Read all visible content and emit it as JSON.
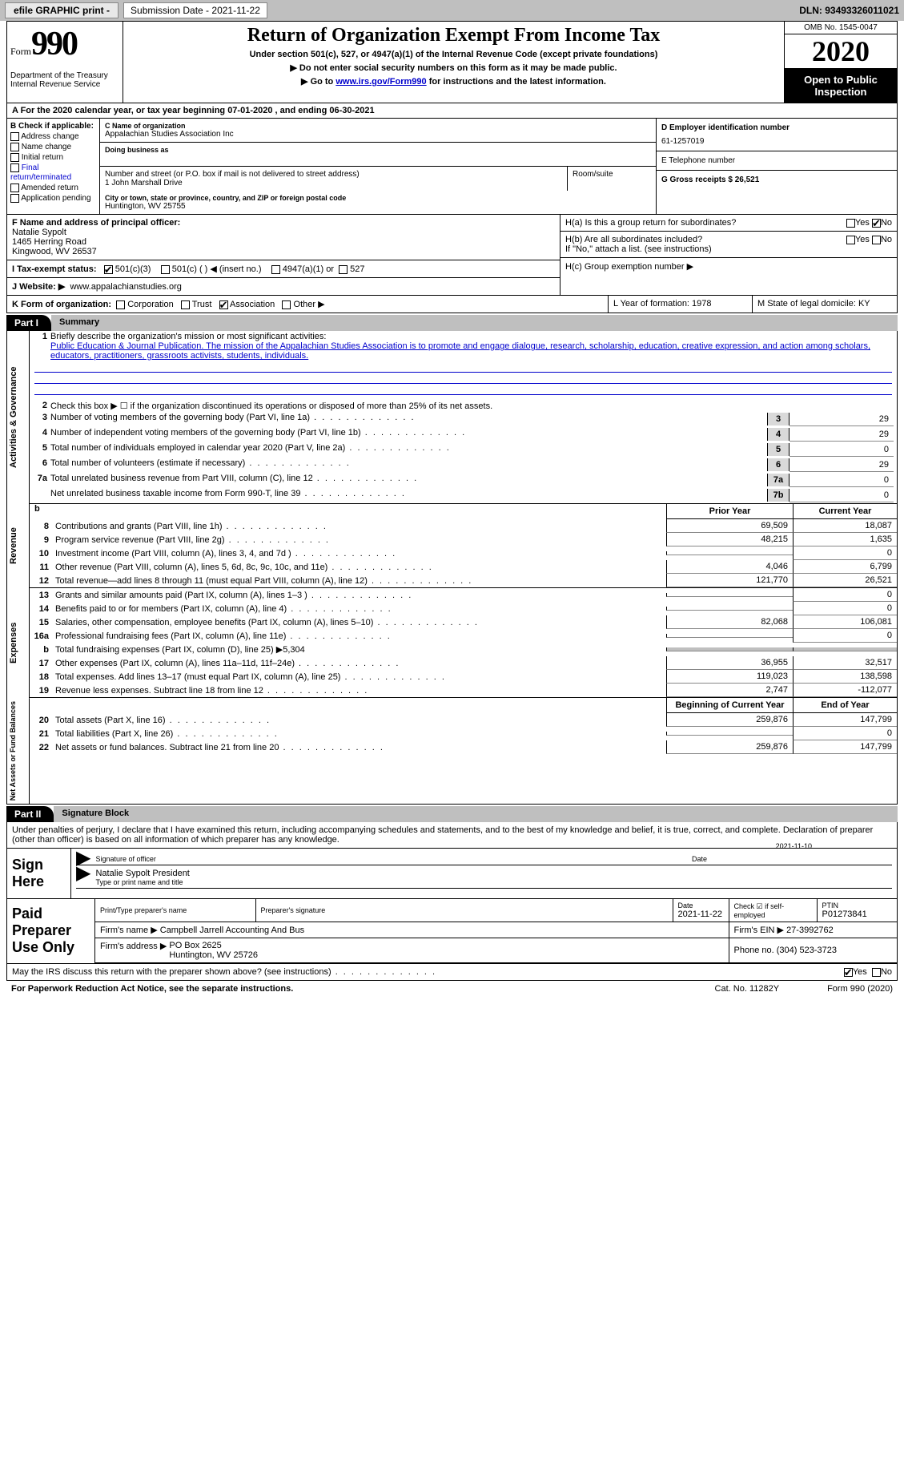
{
  "toolbar": {
    "efile": "efile GRAPHIC print -",
    "submission_label": "Submission Date - 2021-11-22",
    "dln_label": "DLN: 93493326011021"
  },
  "header": {
    "form_word": "Form",
    "form_num": "990",
    "dept": "Department of the Treasury\nInternal Revenue Service",
    "title": "Return of Organization Exempt From Income Tax",
    "sub1": "Under section 501(c), 527, or 4947(a)(1) of the Internal Revenue Code (except private foundations)",
    "sub2a": "▶ Do not enter social security numbers on this form as it may be made public.",
    "sub2b_pre": "▶ Go to ",
    "sub2b_link": "www.irs.gov/Form990",
    "sub2b_post": " for instructions and the latest information.",
    "omb": "OMB No. 1545-0047",
    "year": "2020",
    "open": "Open to Public Inspection"
  },
  "row_a": "A For the 2020 calendar year, or tax year beginning 07-01-2020    , and ending 06-30-2021",
  "col_b": {
    "title": "B Check if applicable:",
    "items": [
      "Address change",
      "Name change",
      "Initial return",
      "Final return/terminated",
      "Amended return",
      "Application pending"
    ]
  },
  "box_c": {
    "lbl": "C Name of organization",
    "val": "Appalachian Studies Association Inc",
    "dba_lbl": "Doing business as",
    "addr_lbl": "Number and street (or P.O. box if mail is not delivered to street address)",
    "addr": "1 John Marshall Drive",
    "room_lbl": "Room/suite",
    "city_lbl": "City or town, state or province, country, and ZIP or foreign postal code",
    "city": "Huntington, WV  25755"
  },
  "col_e": {
    "d_lbl": "D Employer identification number",
    "d_val": "61-1257019",
    "e_lbl": "E Telephone number",
    "g_lbl": "G Gross receipts $ 26,521"
  },
  "box_f": {
    "lbl": "F  Name and address of principal officer:",
    "name": "Natalie Sypolt",
    "addr1": "1465 Herring Road",
    "addr2": "Kingwood, WV  26537"
  },
  "row_i": {
    "lbl": "I   Tax-exempt status:",
    "o1": "501(c)(3)",
    "o2": "501(c) (   ) ◀ (insert no.)",
    "o3": "4947(a)(1) or",
    "o4": "527"
  },
  "row_j": {
    "lbl": "J   Website: ▶",
    "val": "www.appalachianstudies.org"
  },
  "box_h": {
    "a": "H(a)  Is this a group return for subordinates?",
    "b": "H(b)  Are all subordinates included?",
    "b2": "If \"No,\" attach a list. (see instructions)",
    "c": "H(c)  Group exemption number ▶",
    "yes": "Yes",
    "no": "No"
  },
  "row_k": {
    "lbl": "K Form of organization:",
    "o1": "Corporation",
    "o2": "Trust",
    "o3": "Association",
    "o4": "Other ▶"
  },
  "row_l": {
    "lbl": "L Year of formation: 1978"
  },
  "row_m": {
    "lbl": "M State of legal domicile: KY"
  },
  "part1": {
    "hdr": "Part I",
    "title": "Summary"
  },
  "gov": {
    "vlabel": "Activities & Governance",
    "l1_lbl": "Briefly describe the organization's mission or most significant activities:",
    "l1_txt": "Public Education & Journal Publication. The mission of the Appalachian Studies Association is to promote and engage dialogue, research, scholarship, education, creative expression, and action among scholars, educators, practitioners, grassroots activists, students, individuals.",
    "l2": "Check this box ▶ ☐  if the organization discontinued its operations or disposed of more than 25% of its net assets.",
    "rows": [
      {
        "n": "3",
        "desc": "Number of voting members of the governing body (Part VI, line 1a)",
        "cell": "3",
        "val": "29"
      },
      {
        "n": "4",
        "desc": "Number of independent voting members of the governing body (Part VI, line 1b)",
        "cell": "4",
        "val": "29"
      },
      {
        "n": "5",
        "desc": "Total number of individuals employed in calendar year 2020 (Part V, line 2a)",
        "cell": "5",
        "val": "0"
      },
      {
        "n": "6",
        "desc": "Total number of volunteers (estimate if necessary)",
        "cell": "6",
        "val": "29"
      },
      {
        "n": "7a",
        "desc": "Total unrelated business revenue from Part VIII, column (C), line 12",
        "cell": "7a",
        "val": "0"
      },
      {
        "n": "",
        "desc": "Net unrelated business taxable income from Form 990-T, line 39",
        "cell": "7b",
        "val": "0"
      }
    ]
  },
  "two_hdr": {
    "prior": "Prior Year",
    "current": "Current Year",
    "boy": "Beginning of Current Year",
    "eoy": "End of Year"
  },
  "rev": {
    "vlabel": "Revenue",
    "rows": [
      {
        "n": "8",
        "desc": "Contributions and grants (Part VIII, line 1h)",
        "c1": "69,509",
        "c2": "18,087"
      },
      {
        "n": "9",
        "desc": "Program service revenue (Part VIII, line 2g)",
        "c1": "48,215",
        "c2": "1,635"
      },
      {
        "n": "10",
        "desc": "Investment income (Part VIII, column (A), lines 3, 4, and 7d )",
        "c1": "",
        "c2": "0"
      },
      {
        "n": "11",
        "desc": "Other revenue (Part VIII, column (A), lines 5, 6d, 8c, 9c, 10c, and 11e)",
        "c1": "4,046",
        "c2": "6,799"
      },
      {
        "n": "12",
        "desc": "Total revenue—add lines 8 through 11 (must equal Part VIII, column (A), line 12)",
        "c1": "121,770",
        "c2": "26,521"
      }
    ]
  },
  "exp": {
    "vlabel": "Expenses",
    "rows": [
      {
        "n": "13",
        "desc": "Grants and similar amounts paid (Part IX, column (A), lines 1–3 )",
        "c1": "",
        "c2": "0"
      },
      {
        "n": "14",
        "desc": "Benefits paid to or for members (Part IX, column (A), line 4)",
        "c1": "",
        "c2": "0"
      },
      {
        "n": "15",
        "desc": "Salaries, other compensation, employee benefits (Part IX, column (A), lines 5–10)",
        "c1": "82,068",
        "c2": "106,081"
      },
      {
        "n": "16a",
        "desc": "Professional fundraising fees (Part IX, column (A), line 11e)",
        "c1": "",
        "c2": "0"
      },
      {
        "n": "b",
        "desc": "Total fundraising expenses (Part IX, column (D), line 25) ▶5,304",
        "shade": true
      },
      {
        "n": "17",
        "desc": "Other expenses (Part IX, column (A), lines 11a–11d, 11f–24e)",
        "c1": "36,955",
        "c2": "32,517"
      },
      {
        "n": "18",
        "desc": "Total expenses. Add lines 13–17 (must equal Part IX, column (A), line 25)",
        "c1": "119,023",
        "c2": "138,598"
      },
      {
        "n": "19",
        "desc": "Revenue less expenses. Subtract line 18 from line 12",
        "c1": "2,747",
        "c2": "-112,077"
      }
    ]
  },
  "na": {
    "vlabel": "Net Assets or Fund Balances",
    "rows": [
      {
        "n": "20",
        "desc": "Total assets (Part X, line 16)",
        "c1": "259,876",
        "c2": "147,799"
      },
      {
        "n": "21",
        "desc": "Total liabilities (Part X, line 26)",
        "c1": "",
        "c2": "0"
      },
      {
        "n": "22",
        "desc": "Net assets or fund balances. Subtract line 21 from line 20",
        "c1": "259,876",
        "c2": "147,799"
      }
    ]
  },
  "part2": {
    "hdr": "Part II",
    "title": "Signature Block"
  },
  "sig": {
    "decl": "Under penalties of perjury, I declare that I have examined this return, including accompanying schedules and statements, and to the best of my knowledge and belief, it is true, correct, and complete. Declaration of preparer (other than officer) is based on all information of which preparer has any knowledge.",
    "here": "Sign Here",
    "sig_of": "Signature of officer",
    "date": "Date",
    "date_val": "2021-11-10",
    "name": "Natalie Sypolt  President",
    "name_lbl": "Type or print name and title"
  },
  "ppu": {
    "lbl": "Paid Preparer Use Only",
    "h1": "Print/Type preparer's name",
    "h2": "Preparer's signature",
    "h3": "Date",
    "h3v": "2021-11-22",
    "h4": "Check ☑ if self-employed",
    "h5": "PTIN",
    "h5v": "P01273841",
    "firm_lbl": "Firm's name    ▶",
    "firm": "Campbell Jarrell Accounting And Bus",
    "ein_lbl": "Firm's EIN ▶",
    "ein": "27-3992762",
    "addr_lbl": "Firm's address ▶",
    "addr": "PO Box 2625\nHuntington, WV  25726",
    "phone_lbl": "Phone no.",
    "phone": "(304) 523-3723"
  },
  "discuss": {
    "q": "May the IRS discuss this return with the preparer shown above? (see instructions)",
    "yes": "Yes",
    "no": "No"
  },
  "footer": {
    "pra": "For Paperwork Reduction Act Notice, see the separate instructions.",
    "cat": "Cat. No. 11282Y",
    "fn": "Form 990 (2020)"
  }
}
